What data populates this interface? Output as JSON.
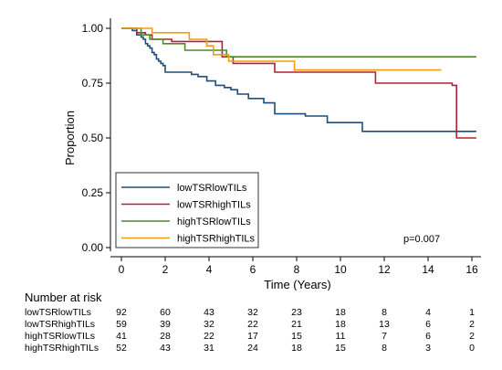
{
  "chart_data": {
    "type": "line",
    "step": true,
    "ylabel": "Proportion",
    "xlabel": "Time (Years)",
    "xlim": [
      0,
      16
    ],
    "ylim": [
      0,
      1
    ],
    "x_ticks": [
      "0",
      "2",
      "4",
      "6",
      "8",
      "10",
      "12",
      "14",
      "16"
    ],
    "y_ticks": [
      "0.00",
      "0.25",
      "0.50",
      "0.75",
      "1.00"
    ],
    "grid": false,
    "legend_position": "bottom-left",
    "annotation": "p=0.007",
    "series": [
      {
        "name": "lowTSRlowTILs",
        "color": "#1f4e79",
        "x": [
          0,
          0.5,
          0.7,
          0.9,
          1.0,
          1.1,
          1.2,
          1.3,
          1.4,
          1.5,
          1.6,
          1.7,
          1.8,
          1.9,
          2.0,
          3.2,
          3.5,
          3.9,
          4.3,
          4.7,
          5.0,
          5.3,
          5.8,
          6.5,
          7.0,
          8.4,
          9.4,
          11.0,
          16.2
        ],
        "y": [
          1.0,
          0.99,
          0.97,
          0.96,
          0.95,
          0.93,
          0.92,
          0.91,
          0.89,
          0.88,
          0.86,
          0.85,
          0.84,
          0.83,
          0.8,
          0.79,
          0.78,
          0.76,
          0.74,
          0.73,
          0.72,
          0.7,
          0.68,
          0.66,
          0.61,
          0.6,
          0.57,
          0.53,
          0.53
        ]
      },
      {
        "name": "lowTSRhighTILs",
        "color": "#b22234",
        "x": [
          0,
          0.7,
          1.1,
          1.4,
          2.3,
          4.6,
          5.1,
          7.0,
          11.6,
          15.1,
          15.3,
          16.2
        ],
        "y": [
          1.0,
          0.98,
          0.97,
          0.95,
          0.94,
          0.87,
          0.84,
          0.8,
          0.75,
          0.74,
          0.5,
          0.5
        ]
      },
      {
        "name": "highTSRlowTILs",
        "color": "#4c8b2b",
        "x": [
          0,
          0.9,
          1.3,
          1.9,
          2.9,
          4.8,
          16.2
        ],
        "y": [
          1.0,
          0.97,
          0.95,
          0.93,
          0.9,
          0.87,
          0.87
        ]
      },
      {
        "name": "highTSRhighTILs",
        "color": "#f39c12",
        "x": [
          0,
          1.4,
          3.1,
          3.9,
          4.2,
          4.9,
          6.1,
          7.9,
          14.6
        ],
        "y": [
          1.0,
          0.98,
          0.95,
          0.92,
          0.88,
          0.85,
          0.85,
          0.81,
          0.81
        ]
      }
    ]
  },
  "risk_table": {
    "title": "Number at risk",
    "times": [
      0,
      2,
      4,
      6,
      8,
      10,
      12,
      14,
      16
    ],
    "rows": [
      {
        "label": "lowTSRlowTILs",
        "values": [
          "92",
          "60",
          "43",
          "32",
          "23",
          "18",
          "8",
          "4",
          "1"
        ]
      },
      {
        "label": "lowTSRhighTILs",
        "values": [
          "59",
          "39",
          "32",
          "22",
          "21",
          "18",
          "13",
          "6",
          "2"
        ]
      },
      {
        "label": "highTSRlowTILs",
        "values": [
          "41",
          "28",
          "22",
          "17",
          "15",
          "11",
          "7",
          "6",
          "2"
        ]
      },
      {
        "label": "highTSRhighTILs",
        "values": [
          "52",
          "43",
          "31",
          "24",
          "18",
          "15",
          "8",
          "3",
          "0"
        ]
      }
    ]
  }
}
